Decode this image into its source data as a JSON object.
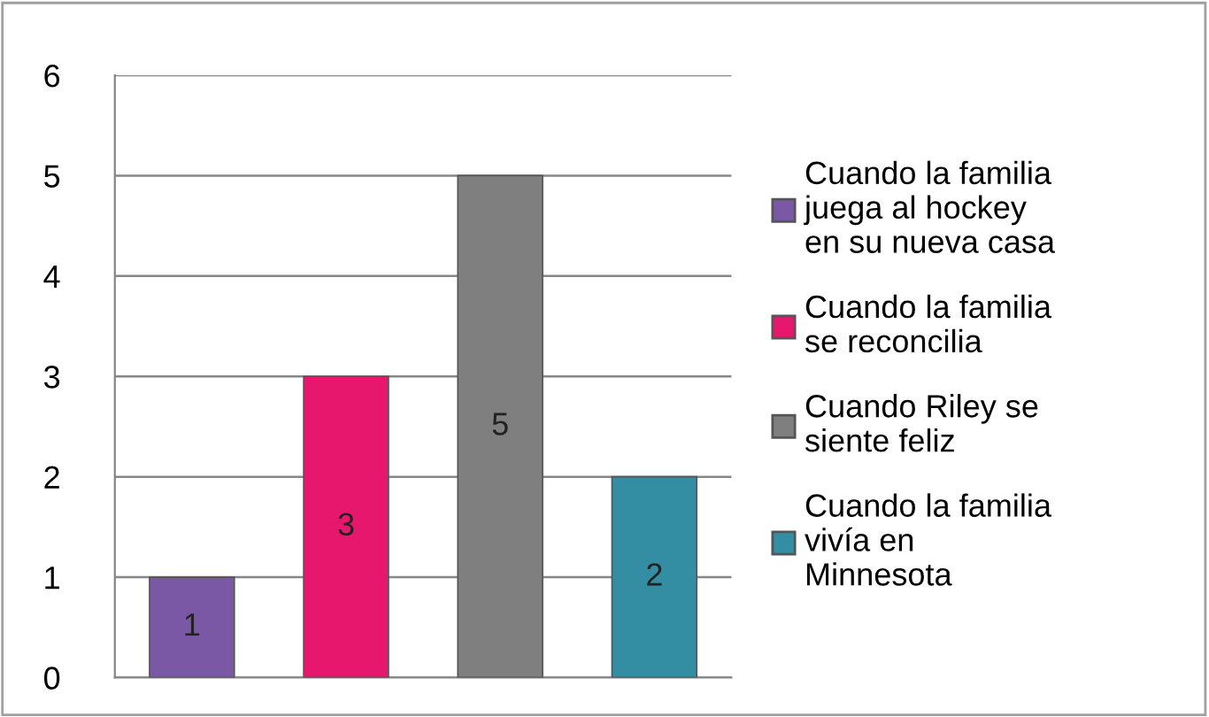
{
  "chart_data": {
    "type": "bar",
    "categories": [
      null,
      null,
      null,
      null
    ],
    "series": [
      {
        "name": "Cuando la familia juega al hockey en su nueva casa",
        "color": "#7b58a6",
        "values": [
          1,
          null,
          null,
          null
        ]
      },
      {
        "name": "Cuando la familia se reconcilia",
        "color": "#e8176e",
        "values": [
          null,
          3,
          null,
          null
        ]
      },
      {
        "name": "Cuando Riley se siente feliz",
        "color": "#7f7f7f",
        "values": [
          null,
          null,
          5,
          null
        ]
      },
      {
        "name": "Cuando la familia vivía en Minnesota",
        "color": "#338ea3",
        "values": [
          null,
          null,
          null,
          2
        ]
      }
    ],
    "ylim": [
      0,
      6
    ],
    "yticks": [
      0,
      1,
      2,
      3,
      4,
      5,
      6
    ],
    "grid": "y",
    "legend": "right",
    "data_labels": true,
    "tick_labels": "y"
  }
}
